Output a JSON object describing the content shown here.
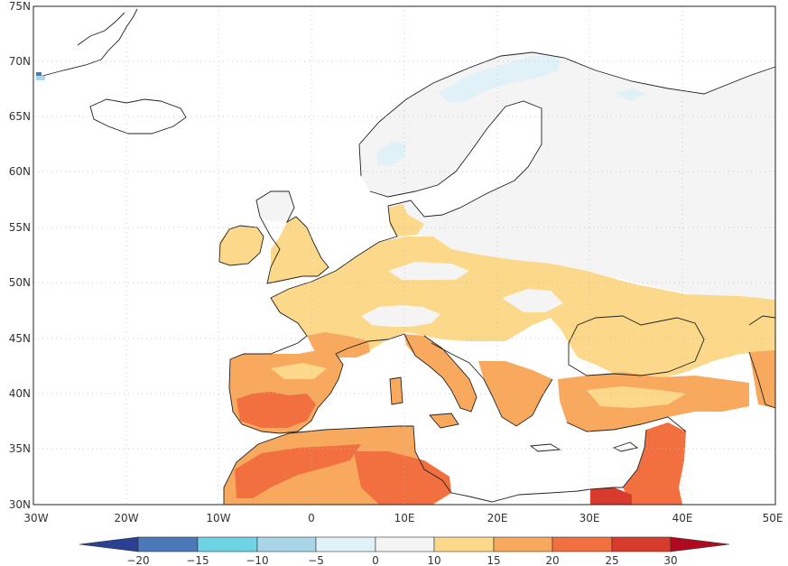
{
  "map": {
    "lat_labels": [
      "75N",
      "70N",
      "65N",
      "60N",
      "55N",
      "50N",
      "45N",
      "40N",
      "35N",
      "30N"
    ],
    "lon_labels": [
      "30W",
      "20W",
      "10W",
      "0",
      "10E",
      "20E",
      "30E",
      "40E",
      "50E"
    ]
  },
  "colorbar": {
    "ticks": [
      "−20",
      "−15",
      "−10",
      "−5",
      "0",
      "10",
      "15",
      "20",
      "25",
      "30"
    ],
    "colors": [
      "#2b3f94",
      "#4a78b8",
      "#6fd3e6",
      "#a9d6e6",
      "#e0f1f7",
      "#f4f4f4",
      "#fcd98a",
      "#f8a95e",
      "#f2703f",
      "#d83a2c",
      "#b10a20"
    ]
  },
  "palette": {
    "land_base": "#f4f4f4",
    "cold_light": "#e0f1f7",
    "warm_1": "#fcd98a",
    "warm_2": "#f8a95e",
    "warm_3": "#f2703f",
    "warm_4": "#d83a2c",
    "ice_blue": "#4a78b8",
    "coast": "#222222",
    "grid": "#bbbbbb"
  }
}
